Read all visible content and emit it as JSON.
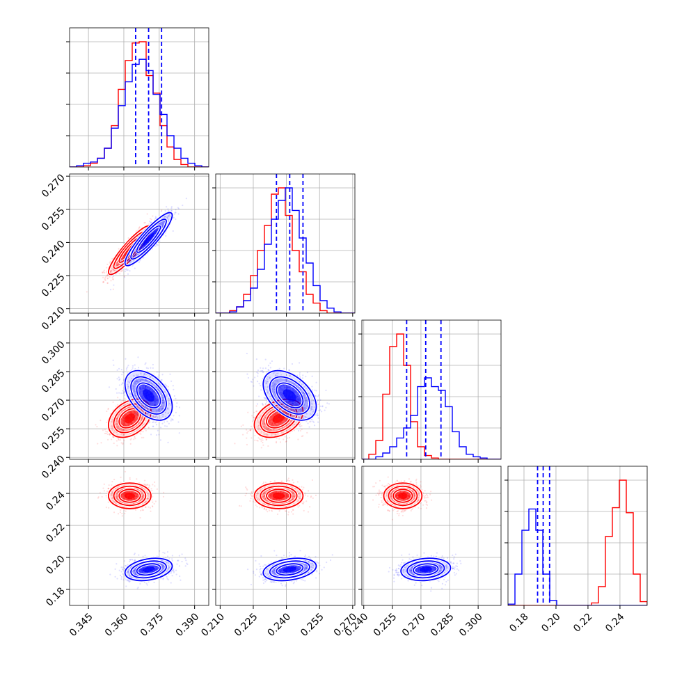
{
  "chart_data": {
    "type": "corner",
    "grid": true,
    "colors": {
      "red": "#ff0000",
      "blue": "#0000ff",
      "grid": "#b0b0b0"
    },
    "params": [
      {
        "range": [
          0.337,
          0.396
        ],
        "ticks": [
          "0.345",
          "0.360",
          "0.375",
          "0.390"
        ],
        "tick_values": [
          0.345,
          0.36,
          0.375,
          0.39
        ]
      },
      {
        "range": [
          0.208,
          0.271
        ],
        "ticks": [
          "0.210",
          "0.225",
          "0.240",
          "0.255",
          "0.270"
        ],
        "tick_values": [
          0.21,
          0.225,
          0.24,
          0.255,
          0.27
        ]
      },
      {
        "range": [
          0.239,
          0.312
        ],
        "ticks": [
          "0.240",
          "0.255",
          "0.270",
          "0.285",
          "0.300"
        ],
        "tick_values": [
          0.24,
          0.255,
          0.27,
          0.285,
          0.3
        ]
      },
      {
        "range": [
          0.17,
          0.257
        ],
        "ticks": [
          "0.18",
          "0.20",
          "0.22",
          "0.24"
        ],
        "tick_values": [
          0.18,
          0.2,
          0.22,
          0.24
        ]
      }
    ],
    "series": [
      {
        "color": "#ff0000",
        "means": [
          0.3625,
          0.2365,
          0.2605,
          0.2385
        ],
        "sds": [
          0.0045,
          0.0055,
          0.005,
          0.004
        ],
        "correlations": {
          "1-0": 0.9,
          "2-0": 0.35,
          "2-1": 0.35,
          "3-0": 0.0,
          "3-1": 0.0,
          "3-2": 0.0
        },
        "histograms": [
          {
            "values": [
              0.0,
              0.0,
              0.01,
              0.03,
              0.07,
              0.15,
              0.33,
              0.62,
              0.85,
              0.99,
              1.0,
              0.73,
              0.59,
              0.33,
              0.16,
              0.06,
              0.02,
              0.0,
              0.0,
              0.0
            ]
          },
          {
            "values": [
              0.0,
              0.0,
              0.02,
              0.05,
              0.15,
              0.3,
              0.5,
              0.7,
              0.95,
              1.0,
              0.78,
              0.5,
              0.33,
              0.15,
              0.08,
              0.02,
              0.0,
              0.0,
              0.0,
              0.0
            ]
          },
          {
            "values": [
              0.0,
              0.04,
              0.15,
              0.52,
              0.9,
              1.0,
              0.75,
              0.3,
              0.1,
              0.03,
              0.01,
              0.0,
              0.0,
              0.0,
              0.0,
              0.0,
              0.0,
              0.0,
              0.0,
              0.0
            ]
          },
          {
            "values": [
              0.0,
              0.0,
              0.0,
              0.0,
              0.0,
              0.0,
              0.0,
              0.0,
              0.0,
              0.0,
              0.0,
              0.0,
              0.02,
              0.15,
              0.55,
              0.78,
              1.0,
              0.74,
              0.25,
              0.03
            ]
          }
        ]
      },
      {
        "color": "#0000ff",
        "means": [
          0.3705,
          0.2415,
          0.2725,
          0.1925
        ],
        "sds": [
          0.005,
          0.006,
          0.0065,
          0.0035
        ],
        "correlations": {
          "1-0": 0.9,
          "2-0": -0.45,
          "2-1": -0.45,
          "3-0": 0.3,
          "3-1": 0.3,
          "3-2": 0.15
        },
        "quantiles": [
          [
            0.365,
            0.3705,
            0.376
          ],
          [
            0.2355,
            0.2415,
            0.2475
          ],
          [
            0.2625,
            0.2725,
            0.2805
          ],
          [
            0.1885,
            0.192,
            0.196
          ]
        ],
        "histograms": [
          {
            "values": [
              0.0,
              0.01,
              0.03,
              0.04,
              0.07,
              0.15,
              0.31,
              0.49,
              0.68,
              0.82,
              0.86,
              0.77,
              0.58,
              0.42,
              0.25,
              0.15,
              0.07,
              0.03,
              0.01,
              0.0
            ]
          },
          {
            "values": [
              0.0,
              0.0,
              0.01,
              0.05,
              0.1,
              0.2,
              0.35,
              0.55,
              0.75,
              0.9,
              1.0,
              0.82,
              0.6,
              0.4,
              0.22,
              0.1,
              0.04,
              0.01,
              0.0,
              0.0
            ]
          },
          {
            "values": [
              0.0,
              0.0,
              0.02,
              0.05,
              0.1,
              0.17,
              0.25,
              0.35,
              0.58,
              0.65,
              0.58,
              0.55,
              0.42,
              0.22,
              0.1,
              0.04,
              0.02,
              0.01,
              0.0,
              0.0
            ]
          },
          {
            "values": [
              0.01,
              0.25,
              0.6,
              0.77,
              0.6,
              0.25,
              0.04,
              0.0,
              0.0,
              0.0,
              0.0,
              0.0,
              0.0,
              0.0,
              0.0,
              0.0,
              0.0,
              0.0,
              0.0,
              0.0
            ]
          }
        ]
      }
    ]
  }
}
